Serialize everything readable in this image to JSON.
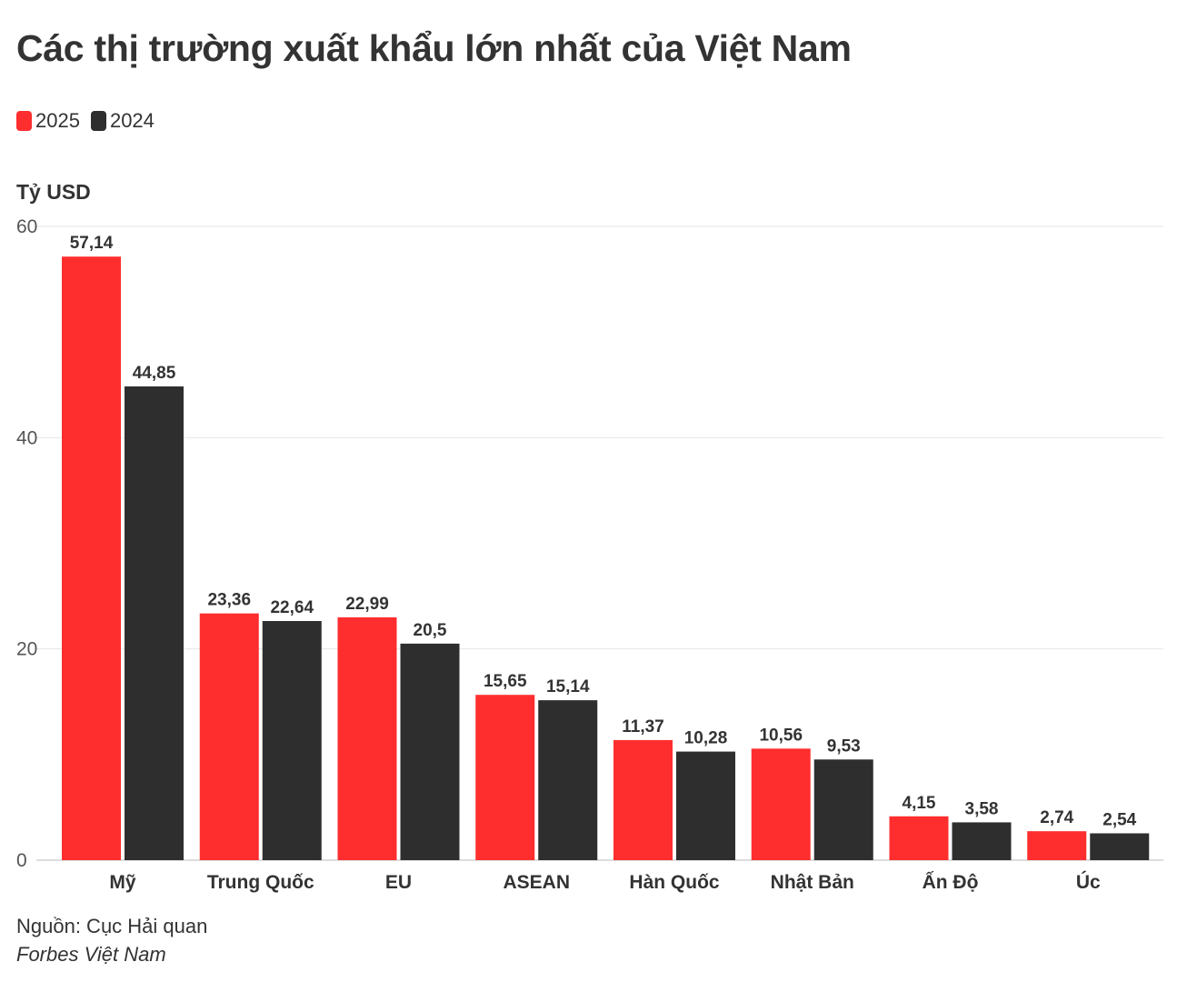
{
  "title": "Các thị trường xuất khẩu lớn nhất của Việt Nam",
  "legend": [
    {
      "label": "2025",
      "color": "#ff2e2e"
    },
    {
      "label": "2024",
      "color": "#2e2e2e"
    }
  ],
  "source": "Nguồn: Cục Hải quan",
  "brand": "Forbes Việt Nam",
  "chart_data": {
    "type": "bar",
    "ylabel": "Tỷ USD",
    "ylim": [
      0,
      60
    ],
    "yticks": [
      0,
      20,
      40,
      60
    ],
    "grid": true,
    "categories": [
      "Mỹ",
      "Trung Quốc",
      "EU",
      "ASEAN",
      "Hàn Quốc",
      "Nhật Bản",
      "Ấn Độ",
      "Úc"
    ],
    "series": [
      {
        "name": "2025",
        "color": "#ff2e2e",
        "values": [
          57.14,
          23.36,
          22.99,
          15.65,
          11.37,
          10.56,
          4.15,
          2.74
        ],
        "labels": [
          "57,14",
          "23,36",
          "22,99",
          "15,65",
          "11,37",
          "10,56",
          "4,15",
          "2,74"
        ]
      },
      {
        "name": "2024",
        "color": "#2e2e2e",
        "values": [
          44.85,
          22.64,
          20.5,
          15.14,
          10.28,
          9.53,
          3.58,
          2.54
        ],
        "labels": [
          "44,85",
          "22,64",
          "20,5",
          "15,14",
          "10,28",
          "9,53",
          "3,58",
          "2,54"
        ]
      }
    ]
  }
}
